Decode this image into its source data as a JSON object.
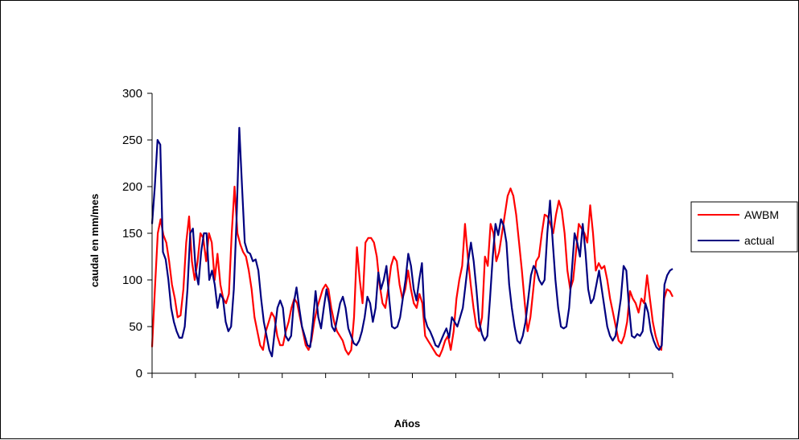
{
  "chart_data": {
    "type": "line",
    "title": "",
    "xlabel": "Años",
    "ylabel": "caudal en mm/mes",
    "ylim": [
      0,
      300
    ],
    "yticks": [
      0,
      50,
      100,
      150,
      200,
      250,
      300
    ],
    "x_tick_count": 12,
    "grid": false,
    "legend_position": "right",
    "series": [
      {
        "name": "AWBM",
        "color": "#ff0000",
        "values": [
          28,
          90,
          150,
          165,
          148,
          140,
          120,
          95,
          80,
          60,
          62,
          90,
          140,
          168,
          120,
          100,
          120,
          150,
          145,
          120,
          150,
          140,
          100,
          128,
          95,
          80,
          75,
          85,
          150,
          200,
          150,
          138,
          130,
          125,
          110,
          90,
          60,
          45,
          30,
          25,
          45,
          55,
          65,
          60,
          40,
          30,
          30,
          45,
          55,
          70,
          80,
          75,
          60,
          45,
          30,
          25,
          35,
          55,
          70,
          80,
          90,
          95,
          90,
          70,
          55,
          45,
          40,
          35,
          25,
          20,
          25,
          60,
          135,
          100,
          75,
          140,
          145,
          145,
          140,
          125,
          95,
          75,
          70,
          90,
          115,
          125,
          120,
          95,
          80,
          90,
          110,
          90,
          75,
          70,
          85,
          75,
          40,
          35,
          30,
          25,
          20,
          18,
          25,
          35,
          40,
          25,
          45,
          80,
          100,
          115,
          160,
          125,
          95,
          70,
          50,
          45,
          60,
          125,
          115,
          160,
          150,
          120,
          130,
          150,
          170,
          190,
          198,
          190,
          170,
          140,
          110,
          75,
          45,
          60,
          90,
          120,
          125,
          150,
          170,
          168,
          160,
          150,
          170,
          185,
          175,
          150,
          110,
          90,
          100,
          130,
          160,
          155,
          150,
          140,
          180,
          150,
          110,
          118,
          112,
          115,
          100,
          80,
          65,
          50,
          35,
          32,
          40,
          55,
          88,
          80,
          75,
          65,
          80,
          75,
          105,
          80,
          55,
          40,
          30,
          25,
          80,
          90,
          88,
          82
        ]
      },
      {
        "name": "actual",
        "color": "#000080",
        "values": [
          160,
          200,
          250,
          245,
          130,
          122,
          100,
          70,
          55,
          45,
          38,
          38,
          50,
          90,
          150,
          155,
          110,
          95,
          130,
          150,
          150,
          100,
          110,
          95,
          70,
          85,
          80,
          55,
          45,
          50,
          90,
          165,
          263,
          200,
          140,
          130,
          128,
          120,
          122,
          110,
          80,
          55,
          40,
          25,
          18,
          45,
          70,
          78,
          70,
          40,
          35,
          40,
          75,
          92,
          70,
          50,
          40,
          30,
          28,
          55,
          88,
          60,
          48,
          70,
          90,
          75,
          50,
          45,
          60,
          75,
          82,
          70,
          48,
          40,
          32,
          30,
          35,
          45,
          60,
          82,
          75,
          55,
          70,
          108,
          90,
          100,
          115,
          80,
          50,
          48,
          50,
          60,
          80,
          100,
          128,
          115,
          90,
          78,
          100,
          118,
          60,
          50,
          45,
          38,
          30,
          28,
          35,
          42,
          48,
          38,
          60,
          55,
          50,
          60,
          70,
          95,
          120,
          140,
          120,
          90,
          55,
          42,
          35,
          40,
          80,
          125,
          160,
          148,
          165,
          158,
          140,
          95,
          70,
          50,
          35,
          32,
          40,
          55,
          80,
          105,
          115,
          110,
          100,
          95,
          100,
          150,
          185,
          140,
          100,
          70,
          50,
          48,
          50,
          70,
          110,
          150,
          140,
          125,
          160,
          130,
          90,
          75,
          80,
          95,
          110,
          90,
          70,
          50,
          40,
          35,
          40,
          60,
          80,
          115,
          110,
          70,
          40,
          38,
          42,
          40,
          45,
          75,
          65,
          45,
          35,
          28,
          25,
          30,
          95,
          105,
          110,
          112
        ]
      }
    ]
  }
}
